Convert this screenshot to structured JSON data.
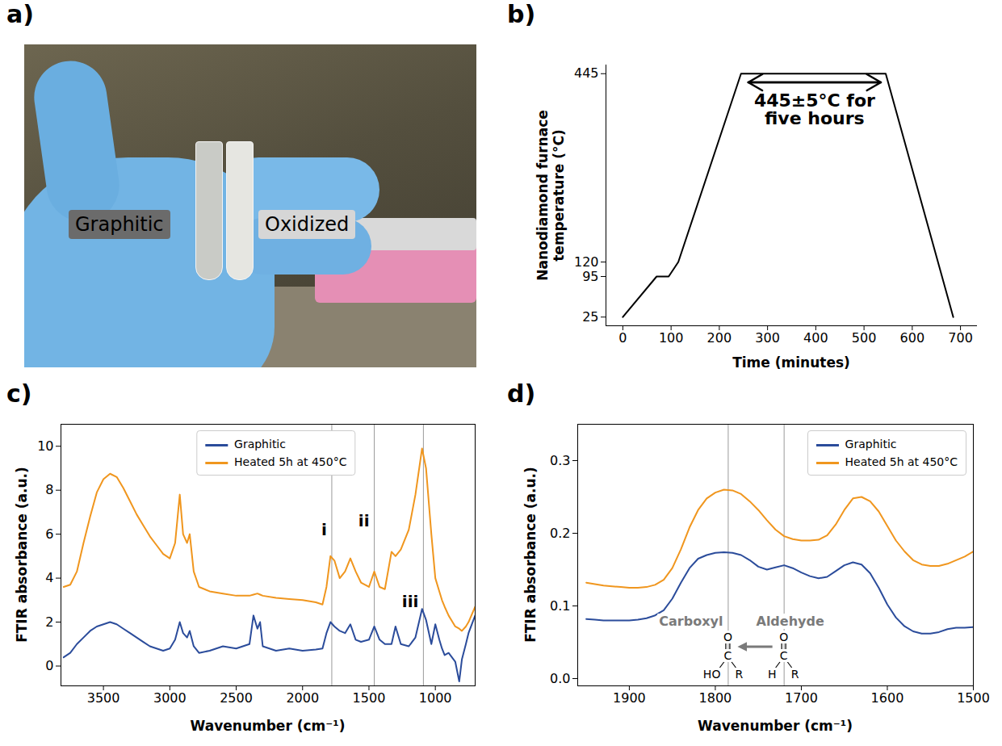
{
  "chart_data": [
    {
      "type": "image",
      "title": "a)",
      "annotations": [
        {
          "text": "Graphitic"
        },
        {
          "text": "Oxidized"
        }
      ]
    },
    {
      "type": "line",
      "title": "b)",
      "x_label": "Time (minutes)",
      "y_label": "Nanodiamond furnace temperature (°C)",
      "x": [
        0,
        70,
        95,
        115,
        245,
        545,
        685
      ],
      "values": [
        25,
        95,
        95,
        120,
        445,
        445,
        25
      ],
      "color": "#000000",
      "xlim": [
        -35,
        735
      ],
      "ylim": [
        10,
        460
      ],
      "xticks": [
        0,
        100,
        200,
        300,
        400,
        500,
        600,
        700
      ],
      "yticks": [
        25,
        95,
        120,
        445
      ],
      "grid": false,
      "annotations": [
        {
          "text": "445±5°C for five hours",
          "x": [
            260,
            535
          ],
          "y": 430
        }
      ]
    },
    {
      "type": "line",
      "title": "c)",
      "x_label": "Wavenumber (cm⁻¹)",
      "y_label": "FTIR absorbance (a.u.)",
      "x": [
        3800,
        3750,
        3700,
        3650,
        3600,
        3550,
        3500,
        3450,
        3400,
        3350,
        3300,
        3250,
        3200,
        3150,
        3100,
        3050,
        3000,
        2960,
        2925,
        2900,
        2870,
        2850,
        2820,
        2780,
        2700,
        2600,
        2500,
        2450,
        2400,
        2370,
        2340,
        2320,
        2300,
        2200,
        2100,
        2000,
        1900,
        1850,
        1820,
        1790,
        1760,
        1720,
        1680,
        1640,
        1600,
        1560,
        1500,
        1460,
        1420,
        1380,
        1330,
        1300,
        1260,
        1200,
        1150,
        1100,
        1070,
        1030,
        1000,
        970,
        950,
        930,
        900,
        850,
        820,
        800,
        770,
        750,
        700
      ],
      "series": [
        {
          "name": "Graphitic",
          "color": "#2b4c9b",
          "values": [
            0.4,
            0.6,
            1.0,
            1.3,
            1.6,
            1.8,
            1.9,
            2.0,
            1.9,
            1.7,
            1.5,
            1.3,
            1.1,
            0.9,
            0.8,
            0.7,
            0.8,
            1.2,
            2.0,
            1.5,
            1.3,
            1.6,
            0.9,
            0.6,
            0.7,
            0.9,
            0.8,
            0.9,
            1.0,
            2.3,
            1.7,
            2.0,
            0.9,
            0.7,
            0.8,
            0.7,
            0.75,
            0.8,
            1.5,
            2.0,
            1.8,
            1.6,
            1.5,
            1.9,
            1.2,
            1.1,
            1.2,
            1.8,
            1.2,
            1.0,
            1.0,
            1.8,
            1.0,
            0.9,
            1.3,
            2.6,
            2.1,
            1.0,
            1.9,
            1.2,
            0.8,
            0.5,
            0.6,
            0.2,
            -0.7,
            0.3,
            1.0,
            1.5,
            2.3
          ]
        },
        {
          "name": "Heated 5h at 450°C",
          "color": "#f0961e",
          "values": [
            3.6,
            3.7,
            4.3,
            5.6,
            6.8,
            7.9,
            8.5,
            8.75,
            8.6,
            8.1,
            7.5,
            6.9,
            6.4,
            5.9,
            5.5,
            5.1,
            4.9,
            5.6,
            7.8,
            6.0,
            5.6,
            6.0,
            4.3,
            3.6,
            3.4,
            3.3,
            3.2,
            3.2,
            3.2,
            3.25,
            3.3,
            3.25,
            3.2,
            3.1,
            3.05,
            3.0,
            2.9,
            2.8,
            3.6,
            5.0,
            4.8,
            4.0,
            4.3,
            4.9,
            4.3,
            3.8,
            3.6,
            4.3,
            3.6,
            3.5,
            5.2,
            5.0,
            5.3,
            6.2,
            7.8,
            9.9,
            9.0,
            6.0,
            4.0,
            3.4,
            3.0,
            2.7,
            2.3,
            1.8,
            1.7,
            1.6,
            1.8,
            2.0,
            2.7
          ]
        }
      ],
      "xlim": [
        3820,
        700
      ],
      "ylim": [
        -0.9,
        11
      ],
      "xticks": [
        3500,
        3000,
        2500,
        2000,
        1500,
        1000
      ],
      "yticks": [
        0,
        2,
        4,
        6,
        8,
        10
      ],
      "grid": false,
      "legend": "upper center",
      "annotations": [
        {
          "text": "i",
          "x": 1780,
          "y": 6.2
        },
        {
          "text": "ii",
          "x": 1460,
          "y": 6.6
        },
        {
          "text": "iii",
          "x": 1090,
          "y": 2.9
        }
      ]
    },
    {
      "type": "line",
      "title": "d)",
      "x_label": "Wavenumber (cm⁻¹)",
      "y_label": "FTIR absorbance (a.u.)",
      "x": [
        1950,
        1940,
        1930,
        1920,
        1910,
        1900,
        1890,
        1880,
        1870,
        1860,
        1850,
        1840,
        1830,
        1820,
        1810,
        1800,
        1790,
        1780,
        1770,
        1760,
        1750,
        1740,
        1730,
        1720,
        1710,
        1700,
        1690,
        1680,
        1670,
        1660,
        1650,
        1640,
        1630,
        1620,
        1610,
        1600,
        1590,
        1580,
        1570,
        1560,
        1550,
        1540,
        1530,
        1520,
        1510,
        1500
      ],
      "series": [
        {
          "name": "Graphitic",
          "color": "#2b4c9b",
          "values": [
            0.082,
            0.081,
            0.08,
            0.08,
            0.08,
            0.08,
            0.081,
            0.083,
            0.087,
            0.094,
            0.11,
            0.132,
            0.152,
            0.165,
            0.17,
            0.173,
            0.174,
            0.173,
            0.17,
            0.163,
            0.154,
            0.15,
            0.153,
            0.156,
            0.152,
            0.146,
            0.141,
            0.138,
            0.14,
            0.148,
            0.156,
            0.16,
            0.157,
            0.145,
            0.125,
            0.102,
            0.084,
            0.072,
            0.065,
            0.062,
            0.062,
            0.064,
            0.068,
            0.07,
            0.07,
            0.071
          ]
        },
        {
          "name": "Heated 5h at 450°C",
          "color": "#f0961e",
          "values": [
            0.132,
            0.13,
            0.128,
            0.127,
            0.126,
            0.125,
            0.125,
            0.126,
            0.129,
            0.136,
            0.152,
            0.178,
            0.208,
            0.232,
            0.248,
            0.256,
            0.26,
            0.259,
            0.254,
            0.244,
            0.232,
            0.218,
            0.205,
            0.196,
            0.192,
            0.19,
            0.19,
            0.191,
            0.197,
            0.212,
            0.232,
            0.248,
            0.25,
            0.244,
            0.23,
            0.21,
            0.19,
            0.175,
            0.163,
            0.157,
            0.155,
            0.155,
            0.158,
            0.163,
            0.168,
            0.175
          ]
        }
      ],
      "xlim": [
        1960,
        1500
      ],
      "ylim": [
        -0.01,
        0.35
      ],
      "xticks": [
        1900,
        1800,
        1700,
        1600,
        1500
      ],
      "yticks": [
        {
          "value": 0,
          "label": "0.0"
        },
        0.1,
        0.2,
        0.3
      ],
      "grid": false,
      "legend": "upper right",
      "annotations": [
        {
          "text": "Carboxyl",
          "x": 1785,
          "atoms": [
            "O",
            "C",
            "HO",
            "R"
          ]
        },
        {
          "text": "Aldehyde",
          "x": 1720,
          "atoms": [
            "O",
            "C",
            "H",
            "R"
          ]
        }
      ]
    }
  ]
}
